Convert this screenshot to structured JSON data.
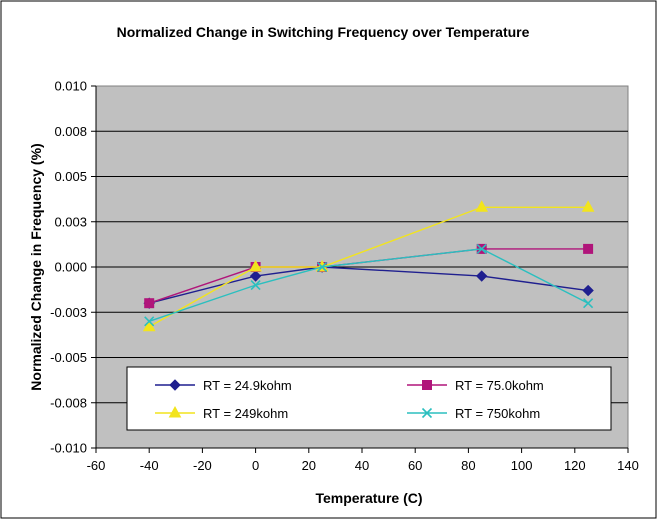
{
  "chart_data": {
    "type": "line",
    "title": "Normalized Change in Switching Frequency over Temperature",
    "xlabel": "Temperature (C)",
    "ylabel": "Normalized Change in Frequency (%)",
    "xlim": [
      -60,
      140
    ],
    "ylim": [
      -0.01,
      0.01
    ],
    "x_ticks": [
      -60,
      -40,
      -20,
      0,
      20,
      40,
      60,
      80,
      100,
      120,
      140
    ],
    "y_ticks": [
      -0.01,
      -0.0075,
      -0.005,
      -0.0025,
      0,
      0.0025,
      0.005,
      0.0075,
      0.01
    ],
    "y_tick_labels": [
      "-0.010",
      "-0.008",
      "-0.005",
      "-0.003",
      "0.000",
      "0.003",
      "0.005",
      "0.008",
      "0.010"
    ],
    "grid": "horizontal",
    "legend_placement": "bottom-inside",
    "x": [
      -40,
      0,
      25,
      85,
      125
    ],
    "series": [
      {
        "name": "RT = 24.9kohm",
        "values": [
          -0.002,
          -0.0005,
          0,
          -0.0005,
          -0.0013
        ],
        "color": "#1f1f8f",
        "marker": "diamond"
      },
      {
        "name": "RT = 75.0kohm",
        "values": [
          -0.002,
          0,
          0,
          0.001,
          0.001
        ],
        "color": "#b0157a",
        "marker": "square"
      },
      {
        "name": "RT = 249kohm",
        "values": [
          -0.0033,
          0,
          0,
          0.0033,
          0.0033
        ],
        "color": "#f2e41d",
        "marker": "triangle"
      },
      {
        "name": "RT = 750kohm",
        "values": [
          -0.003,
          -0.001,
          0,
          0.001,
          -0.002
        ],
        "color": "#2bbfbf",
        "marker": "x"
      }
    ],
    "plot_background": "#c0c0c0"
  }
}
